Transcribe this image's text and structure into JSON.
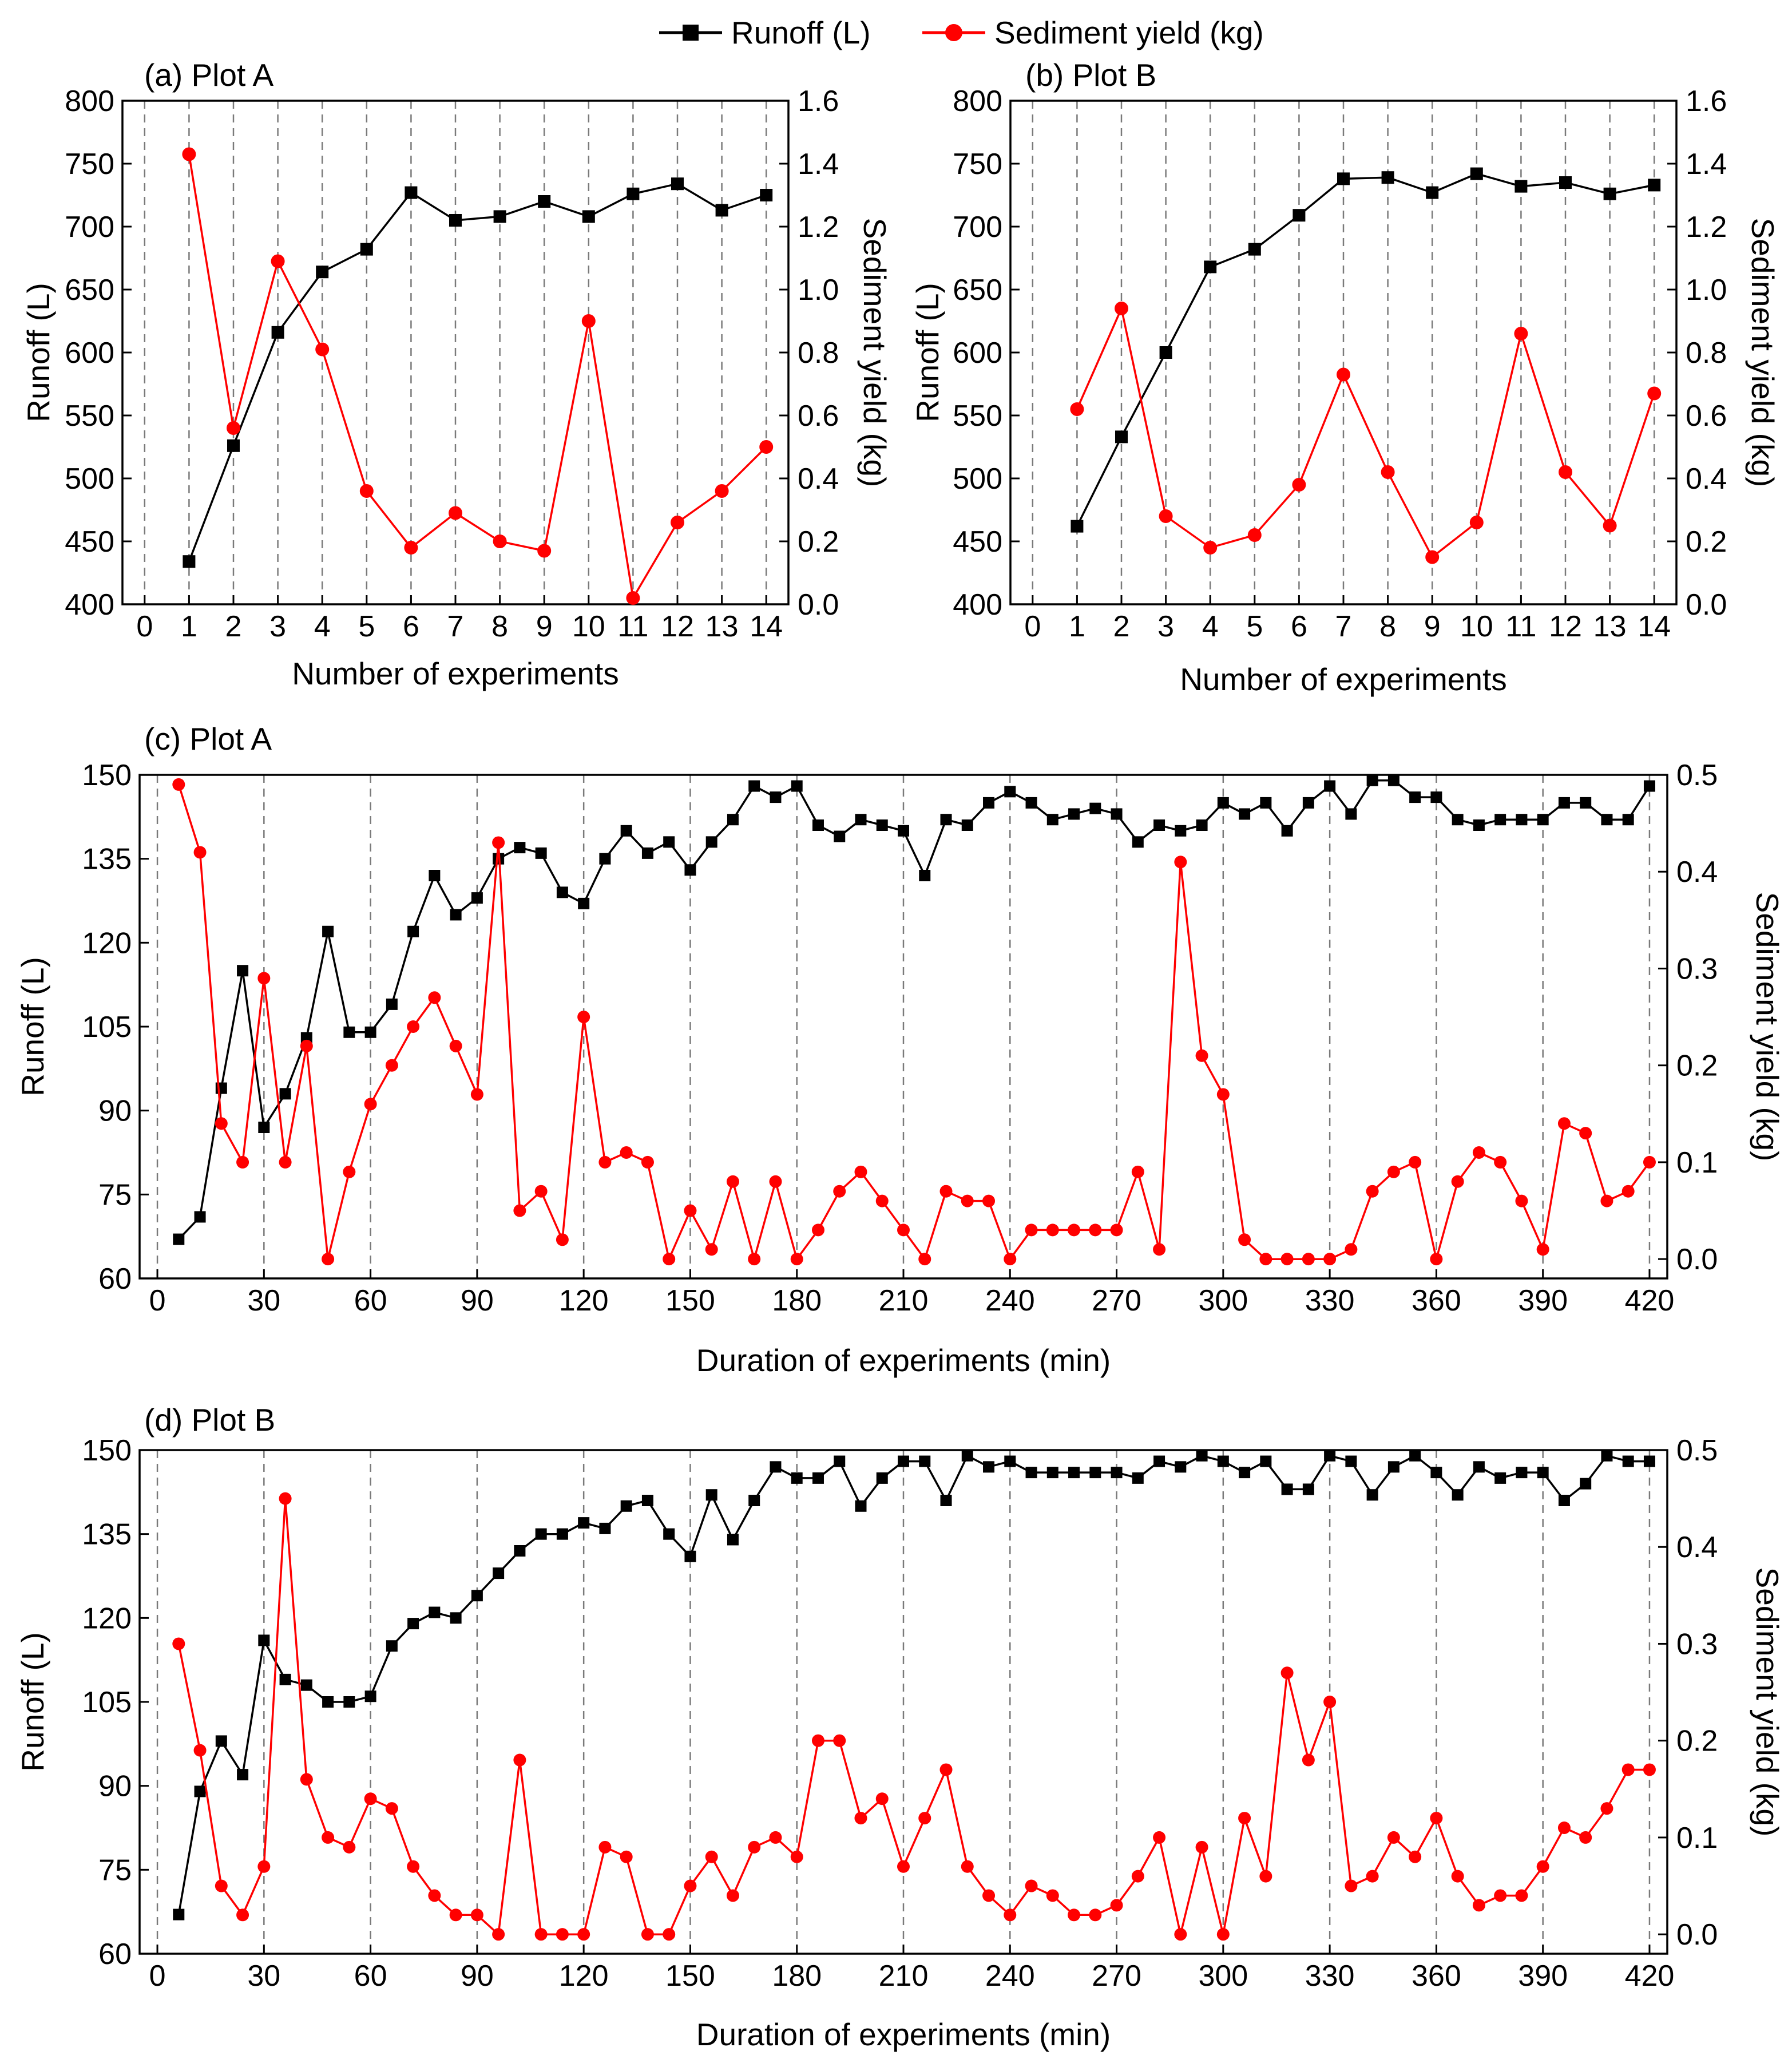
{
  "legend": {
    "runoff_label": "Runoff (L)",
    "sediment_label": "Sediment yield (kg)",
    "runoff_color": "#000000",
    "sediment_color": "#ff0000"
  },
  "chart_data": [
    {
      "id": "a",
      "type": "line",
      "title": "(a) Plot A",
      "xlabel": "Number of experiments",
      "ylabel": "Runoff (L)",
      "y2label": "Sediment yield (kg)",
      "xlim": [
        -0.5,
        14.5
      ],
      "xticks": [
        0,
        1,
        2,
        3,
        4,
        5,
        6,
        7,
        8,
        9,
        10,
        11,
        12,
        13,
        14
      ],
      "ylim": [
        400,
        800
      ],
      "yticks": [
        400,
        450,
        500,
        550,
        600,
        650,
        700,
        750,
        800
      ],
      "y2lim": [
        0,
        1.6
      ],
      "y2ticks": [
        "0.0",
        "0.2",
        "0.4",
        "0.6",
        "0.8",
        "1.0",
        "1.2",
        "1.4",
        "1.6"
      ],
      "grid_x": [
        0,
        1,
        2,
        3,
        4,
        5,
        6,
        7,
        8,
        9,
        10,
        11,
        12,
        13,
        14
      ],
      "series": [
        {
          "name": "Runoff (L)",
          "axis": "left",
          "marker": "square",
          "x": [
            1,
            2,
            3,
            4,
            5,
            6,
            7,
            8,
            9,
            10,
            11,
            12,
            13,
            14
          ],
          "values": [
            434,
            526,
            616,
            664,
            682,
            727,
            705,
            708,
            720,
            708,
            726,
            734,
            713,
            725
          ]
        },
        {
          "name": "Sediment yield (kg)",
          "axis": "right",
          "marker": "circle",
          "x": [
            1,
            2,
            3,
            4,
            5,
            6,
            7,
            8,
            9,
            10,
            11,
            12,
            13,
            14
          ],
          "values": [
            1.43,
            0.56,
            1.09,
            0.81,
            0.36,
            0.18,
            0.29,
            0.2,
            0.17,
            0.9,
            0.02,
            0.26,
            0.36,
            0.5
          ]
        }
      ]
    },
    {
      "id": "b",
      "type": "line",
      "title": "(b) Plot B",
      "xlabel": "Number of experiments",
      "ylabel": "Runoff (L)",
      "y2label": "Sediment yield (kg)",
      "xlim": [
        -0.5,
        14.5
      ],
      "xticks": [
        0,
        1,
        2,
        3,
        4,
        5,
        6,
        7,
        8,
        9,
        10,
        11,
        12,
        13,
        14
      ],
      "ylim": [
        400,
        800
      ],
      "yticks": [
        400,
        450,
        500,
        550,
        600,
        650,
        700,
        750,
        800
      ],
      "y2lim": [
        0,
        1.6
      ],
      "y2ticks": [
        "0.0",
        "0.2",
        "0.4",
        "0.6",
        "0.8",
        "1.0",
        "1.2",
        "1.4",
        "1.6"
      ],
      "grid_x": [
        0,
        1,
        2,
        3,
        4,
        5,
        6,
        7,
        8,
        9,
        10,
        11,
        12,
        13,
        14
      ],
      "series": [
        {
          "name": "Runoff (L)",
          "axis": "left",
          "marker": "square",
          "x": [
            1,
            2,
            3,
            4,
            5,
            6,
            7,
            8,
            9,
            10,
            11,
            12,
            13,
            14
          ],
          "values": [
            462,
            533,
            600,
            668,
            682,
            709,
            738,
            739,
            727,
            742,
            732,
            735,
            726,
            733
          ]
        },
        {
          "name": "Sediment yield (kg)",
          "axis": "right",
          "marker": "circle",
          "x": [
            1,
            2,
            3,
            4,
            5,
            6,
            7,
            8,
            9,
            10,
            11,
            12,
            13,
            14
          ],
          "values": [
            0.62,
            0.94,
            0.28,
            0.18,
            0.22,
            0.38,
            0.73,
            0.42,
            0.15,
            0.26,
            0.86,
            0.42,
            0.25,
            0.67
          ]
        }
      ]
    },
    {
      "id": "c",
      "type": "line",
      "title": "(c) Plot A",
      "xlabel": "Duration of experiments (min)",
      "ylabel": "Runoff (L)",
      "y2label": "Sediment yield (kg)",
      "xlim": [
        -5,
        425
      ],
      "xticks": [
        0,
        30,
        60,
        90,
        120,
        150,
        180,
        210,
        240,
        270,
        300,
        330,
        360,
        390,
        420
      ],
      "ylim": [
        60,
        150
      ],
      "yticks": [
        60,
        75,
        90,
        105,
        120,
        135,
        150
      ],
      "y2lim": [
        -0.02,
        0.5
      ],
      "y2ticks": [
        "0.0",
        "0.1",
        "0.2",
        "0.3",
        "0.4",
        "0.5"
      ],
      "y2tick_values": [
        0,
        0.1,
        0.2,
        0.3,
        0.4,
        0.5
      ],
      "grid_x": [
        0,
        30,
        60,
        90,
        120,
        150,
        180,
        210,
        240,
        270,
        300,
        330,
        360,
        390,
        420
      ],
      "series": [
        {
          "name": "Runoff (L)",
          "axis": "left",
          "marker": "square",
          "x": [
            6,
            12,
            18,
            24,
            30,
            36,
            42,
            48,
            54,
            60,
            66,
            72,
            78,
            84,
            90,
            96,
            102,
            108,
            114,
            120,
            126,
            132,
            138,
            144,
            150,
            156,
            162,
            168,
            174,
            180,
            186,
            192,
            198,
            204,
            210,
            216,
            222,
            228,
            234,
            240,
            246,
            252,
            258,
            264,
            270,
            276,
            282,
            288,
            294,
            300,
            306,
            312,
            318,
            324,
            330,
            336,
            342,
            348,
            354,
            360,
            366,
            372,
            378,
            384,
            390,
            396,
            402,
            408,
            414,
            420
          ],
          "values": [
            67,
            71,
            94,
            115,
            87,
            93,
            103,
            122,
            104,
            104,
            109,
            122,
            132,
            125,
            128,
            135,
            137,
            136,
            129,
            127,
            135,
            140,
            136,
            138,
            133,
            138,
            142,
            148,
            146,
            148,
            141,
            139,
            142,
            141,
            140,
            132,
            142,
            141,
            145,
            147,
            145,
            142,
            143,
            144,
            143,
            138,
            141,
            140,
            141,
            145,
            143,
            145,
            140,
            145,
            148,
            143,
            149,
            149,
            146,
            146,
            142,
            141,
            142,
            142,
            142,
            145,
            145,
            142,
            142,
            148
          ]
        },
        {
          "name": "Sediment yield (kg)",
          "axis": "right",
          "marker": "circle",
          "x": [
            6,
            12,
            18,
            24,
            30,
            36,
            42,
            48,
            54,
            60,
            66,
            72,
            78,
            84,
            90,
            96,
            102,
            108,
            114,
            120,
            126,
            132,
            138,
            144,
            150,
            156,
            162,
            168,
            174,
            180,
            186,
            192,
            198,
            204,
            210,
            216,
            222,
            228,
            234,
            240,
            246,
            252,
            258,
            264,
            270,
            276,
            282,
            288,
            294,
            300,
            306,
            312,
            318,
            324,
            330,
            336,
            342,
            348,
            354,
            360,
            366,
            372,
            378,
            384,
            390,
            396,
            402,
            408,
            414,
            420
          ],
          "values": [
            0.49,
            0.42,
            0.14,
            0.1,
            0.29,
            0.1,
            0.22,
            0.0,
            0.09,
            0.16,
            0.2,
            0.24,
            0.27,
            0.22,
            0.17,
            0.43,
            0.05,
            0.07,
            0.02,
            0.25,
            0.1,
            0.11,
            0.1,
            0.0,
            0.05,
            0.01,
            0.08,
            0.0,
            0.08,
            0.0,
            0.03,
            0.07,
            0.09,
            0.06,
            0.03,
            0.0,
            0.07,
            0.06,
            0.06,
            0.0,
            0.03,
            0.03,
            0.03,
            0.03,
            0.03,
            0.09,
            0.01,
            0.41,
            0.21,
            0.17,
            0.02,
            0.0,
            0.0,
            0.0,
            0.0,
            0.01,
            0.07,
            0.09,
            0.1,
            0.0,
            0.08,
            0.11,
            0.1,
            0.06,
            0.01,
            0.14,
            0.13,
            0.06,
            0.07,
            0.1
          ]
        }
      ]
    },
    {
      "id": "d",
      "type": "line",
      "title": "(d) Plot B",
      "xlabel": "Duration of experiments (min)",
      "ylabel": "Runoff (L)",
      "y2label": "Sediment yield (kg)",
      "xlim": [
        -5,
        425
      ],
      "xticks": [
        0,
        30,
        60,
        90,
        120,
        150,
        180,
        210,
        240,
        270,
        300,
        330,
        360,
        390,
        420
      ],
      "ylim": [
        60,
        150
      ],
      "yticks": [
        60,
        75,
        90,
        105,
        120,
        135,
        150
      ],
      "y2lim": [
        -0.02,
        0.5
      ],
      "y2ticks": [
        "0.0",
        "0.1",
        "0.2",
        "0.3",
        "0.4",
        "0.5"
      ],
      "y2tick_values": [
        0,
        0.1,
        0.2,
        0.3,
        0.4,
        0.5
      ],
      "grid_x": [
        0,
        30,
        60,
        90,
        120,
        150,
        180,
        210,
        240,
        270,
        300,
        330,
        360,
        390,
        420
      ],
      "series": [
        {
          "name": "Runoff (L)",
          "axis": "left",
          "marker": "square",
          "x": [
            6,
            12,
            18,
            24,
            30,
            36,
            42,
            48,
            54,
            60,
            66,
            72,
            78,
            84,
            90,
            96,
            102,
            108,
            114,
            120,
            126,
            132,
            138,
            144,
            150,
            156,
            162,
            168,
            174,
            180,
            186,
            192,
            198,
            204,
            210,
            216,
            222,
            228,
            234,
            240,
            246,
            252,
            258,
            264,
            270,
            276,
            282,
            288,
            294,
            300,
            306,
            312,
            318,
            324,
            330,
            336,
            342,
            348,
            354,
            360,
            366,
            372,
            378,
            384,
            390,
            396,
            402,
            408,
            414,
            420
          ],
          "values": [
            67,
            89,
            98,
            92,
            116,
            109,
            108,
            105,
            105,
            106,
            115,
            119,
            121,
            120,
            124,
            128,
            132,
            135,
            135,
            137,
            136,
            140,
            141,
            135,
            131,
            142,
            134,
            141,
            147,
            145,
            145,
            148,
            140,
            145,
            148,
            148,
            141,
            149,
            147,
            148,
            146,
            146,
            146,
            146,
            146,
            145,
            148,
            147,
            149,
            148,
            146,
            148,
            143,
            143,
            149,
            148,
            142,
            147,
            149,
            146,
            142,
            147,
            145,
            146,
            146,
            141,
            144,
            149,
            148,
            148
          ]
        },
        {
          "name": "Sediment yield (kg)",
          "axis": "right",
          "marker": "circle",
          "x": [
            6,
            12,
            18,
            24,
            30,
            36,
            42,
            48,
            54,
            60,
            66,
            72,
            78,
            84,
            90,
            96,
            102,
            108,
            114,
            120,
            126,
            132,
            138,
            144,
            150,
            156,
            162,
            168,
            174,
            180,
            186,
            192,
            198,
            204,
            210,
            216,
            222,
            228,
            234,
            240,
            246,
            252,
            258,
            264,
            270,
            276,
            282,
            288,
            294,
            300,
            306,
            312,
            318,
            324,
            330,
            336,
            342,
            348,
            354,
            360,
            366,
            372,
            378,
            384,
            390,
            396,
            402,
            408,
            414,
            420
          ],
          "values": [
            0.3,
            0.19,
            0.05,
            0.02,
            0.07,
            0.45,
            0.16,
            0.1,
            0.09,
            0.14,
            0.13,
            0.07,
            0.04,
            0.02,
            0.02,
            0.0,
            0.18,
            0.0,
            0.0,
            0.0,
            0.09,
            0.08,
            0.0,
            0.0,
            0.05,
            0.08,
            0.04,
            0.09,
            0.1,
            0.08,
            0.2,
            0.2,
            0.12,
            0.14,
            0.07,
            0.12,
            0.17,
            0.07,
            0.04,
            0.02,
            0.05,
            0.04,
            0.02,
            0.02,
            0.03,
            0.06,
            0.1,
            0.0,
            0.09,
            0.0,
            0.12,
            0.06,
            0.27,
            0.18,
            0.24,
            0.05,
            0.06,
            0.1,
            0.08,
            0.12,
            0.06,
            0.03,
            0.04,
            0.04,
            0.07,
            0.11,
            0.1,
            0.13,
            0.17,
            0.17
          ]
        }
      ]
    }
  ]
}
